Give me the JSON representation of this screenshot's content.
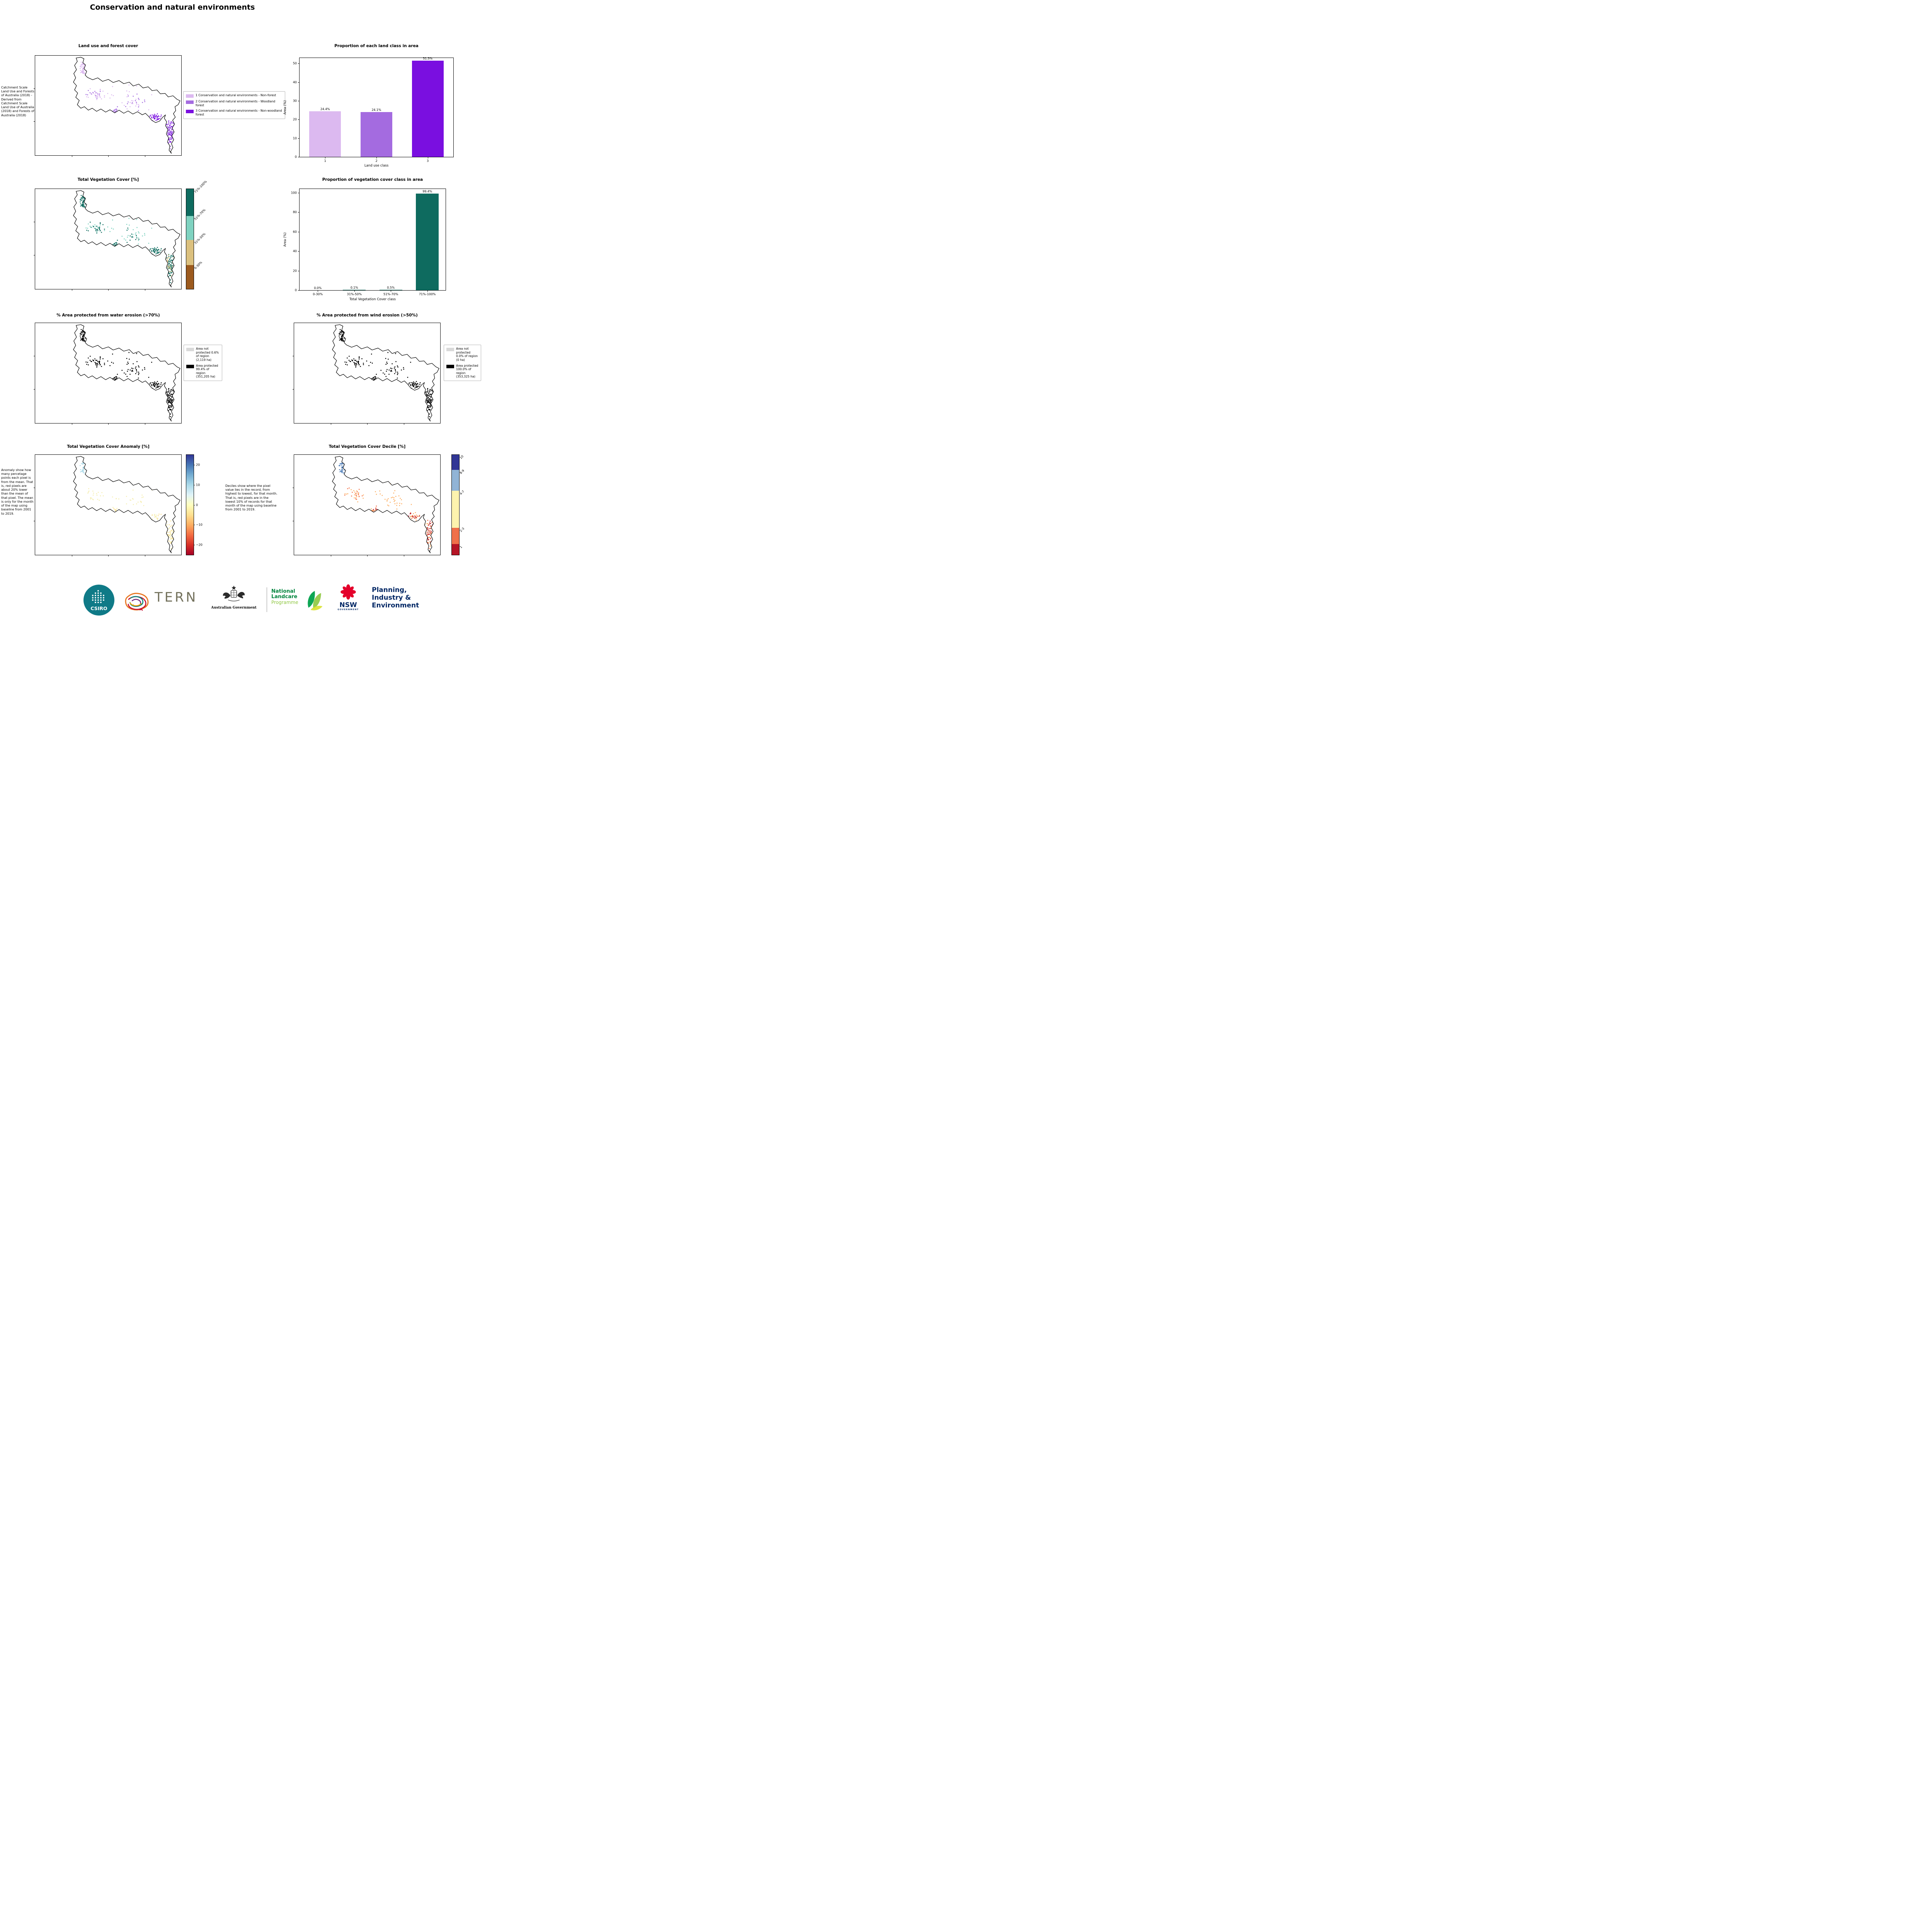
{
  "page": {
    "title": "Conservation and natural environments"
  },
  "land_use": {
    "title": "Land use and forest cover",
    "caption": "Catchment Scale Land Use and Forests of Australia (2018) - Derived from Catchment Scale Land Use of Australia (2018) and Forests of Australia (2018)",
    "legend": [
      {
        "label": "1 Conservation and natural environments - Non-forest",
        "color": "#dcb9f0"
      },
      {
        "label": "2 Conservation and natural environments - Woodland forest",
        "color": "#a46be0"
      },
      {
        "label": "3 Conservation and natural environments - Non-woodland forest",
        "color": "#7a0fe0"
      }
    ]
  },
  "veg_cover": {
    "title": "Total Vegetation Cover [%]",
    "colorbar": [
      {
        "label": "71%-100%",
        "color": "#0e6b5f",
        "height": 27
      },
      {
        "label": "51%-70%",
        "color": "#7fd2c0",
        "height": 24
      },
      {
        "label": "31%-50%",
        "color": "#dbc07e",
        "height": 25
      },
      {
        "label": "0-30%",
        "color": "#9c5a1e",
        "height": 24
      }
    ]
  },
  "water_erosion": {
    "title": "% Area protected from water erosion (>70%)",
    "legend": [
      {
        "label": "Area not protected 0.6% of region (2,119 ha)",
        "color": "#d9d9d9"
      },
      {
        "label": "Area protected 99.4% of region (351,205 ha)",
        "color": "#000000"
      }
    ]
  },
  "wind_erosion": {
    "title": "% Area protected from wind erosion (>50%)",
    "legend": [
      {
        "label": "Area not protected 0.0% of region (0 ha)",
        "color": "#d9d9d9"
      },
      {
        "label": "Area protected 100.0% of region (353,325 ha)",
        "color": "#000000"
      }
    ]
  },
  "anomaly": {
    "title": "Total Vegetation Cover Anomaly [%]",
    "caption": "Anomaly show how many percetage points each pixel is from the mean. That is, red pixels are about 20% lower than the mean of that pixel. The mean is only for the month of the map using baseline from 2001 to 2019.",
    "colorbar": {
      "gradient": [
        "#313695",
        "#4575b4",
        "#74add1",
        "#abd9e9",
        "#e0f3f8",
        "#ffffbf",
        "#fee090",
        "#fdae61",
        "#f46d43",
        "#d73027",
        "#a50026"
      ],
      "range": [
        -25,
        25
      ],
      "ticks": [
        {
          "label": "20",
          "value": 20
        },
        {
          "label": "10",
          "value": 10
        },
        {
          "label": "0",
          "value": 0
        },
        {
          "label": "−10",
          "value": -10
        },
        {
          "label": "−20",
          "value": -20
        }
      ]
    }
  },
  "decile": {
    "title": "Total Vegetation Cover Decile [%]",
    "caption": "Deciles show where the pixel value lies in the record, from highest to lowest, for that month. That is, red pixels are in the lowest 10% of records for that month of the map using baseline from 2001 to 2019.",
    "colorbar": [
      {
        "label": "10",
        "color": "#313695",
        "height": 15
      },
      {
        "label": "8-9",
        "color": "#91b4d6",
        "height": 21
      },
      {
        "label": "4-7",
        "color": "#fdf3ae",
        "height": 37
      },
      {
        "label": "2-3",
        "color": "#f0704a",
        "height": 16
      },
      {
        "label": "1",
        "color": "#b51526",
        "height": 11
      }
    ]
  },
  "map_pixel_colors": {
    "land_use": [
      "#dcb9f0",
      "#a46be0",
      "#7a0fe0"
    ],
    "veg_cover": [
      "#0e6b5f",
      "#7fd2c0",
      "#dbc07e"
    ],
    "erosion": [
      "#000000"
    ],
    "anomaly": [
      "#a8d8e8",
      "#f5eeb0",
      "#fee090"
    ],
    "decile": [
      "#4575b4",
      "#f46d43",
      "#b51526",
      "#fdae61",
      "#9ab8d8"
    ]
  },
  "chart_data": [
    {
      "type": "bar",
      "title": "Proportion of each land class in area",
      "categories": [
        "1",
        "2",
        "3"
      ],
      "values": [
        24.4,
        24.1,
        51.5
      ],
      "bar_labels": [
        "24.4%",
        "24.1%",
        "51.5%"
      ],
      "bar_colors": [
        "#dcb9f0",
        "#a46be0",
        "#7a0fe0"
      ],
      "xlabel": "Land use class",
      "ylabel": "Area (%)",
      "ylim": [
        0,
        53
      ],
      "yticks": [
        0,
        10,
        20,
        30,
        40,
        50
      ],
      "grid": false,
      "legend_position": "none"
    },
    {
      "type": "bar",
      "title": "Proportion of vegetation cover class in area",
      "categories": [
        "0-30%",
        "31%-50%",
        "51%-70%",
        "71%-100%"
      ],
      "values": [
        0.0,
        0.1,
        0.5,
        99.4
      ],
      "bar_labels": [
        "0.0%",
        "0.1%",
        "0.5%",
        "99.4%"
      ],
      "bar_colors": [
        "#0e6b5f",
        "#0e6b5f",
        "#0e6b5f",
        "#0e6b5f"
      ],
      "xlabel": "Total Vegetation Cover class",
      "ylabel": "Area (%)",
      "ylim": [
        0,
        104
      ],
      "yticks": [
        0,
        20,
        40,
        60,
        80,
        100
      ],
      "grid": false,
      "legend_position": "none"
    }
  ],
  "logos": {
    "csiro": {
      "label": "CSIRO",
      "circle_color": "#0f7a87"
    },
    "tern": {
      "label": "TERN"
    },
    "australian_government": {
      "label": "Australian Government"
    },
    "landcare": {
      "line1": "National",
      "line2": "Landcare",
      "line3": "Programme",
      "green": "#00843d",
      "light_green": "#8dc63f"
    },
    "nsw": {
      "label": "NSW",
      "sublabel": "GOVERNMENT",
      "navy": "#002664",
      "red": "#e4002b"
    },
    "planning": {
      "line1": "Planning,",
      "line2": "Industry &",
      "line3": "Environment"
    }
  }
}
